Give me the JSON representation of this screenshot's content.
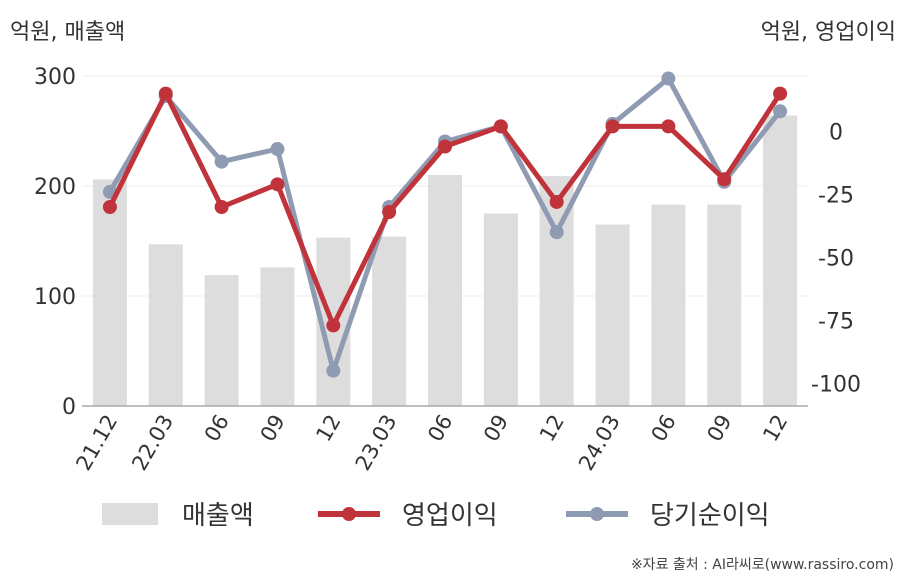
{
  "unit_left": "억원, 매출액",
  "unit_right": "억원, 영업이익",
  "source": "※자료 출처 : AI라씨로(www.rassiro.com)",
  "colors": {
    "bar": "#dddddd",
    "op": "#c0333a",
    "net": "#8f9bb3",
    "axis": "#aaaaaa",
    "grid": "#eeeeee"
  },
  "chart_data": {
    "type": "bar",
    "categories": [
      "21.12",
      "22.03",
      "06",
      "09",
      "12",
      "23.03",
      "06",
      "09",
      "12",
      "24.03",
      "06",
      "09",
      "12"
    ],
    "y_left": {
      "ticks": [
        0,
        100,
        200,
        300
      ],
      "range": [
        0,
        300
      ]
    },
    "y_right": {
      "ticks": [
        0,
        -25,
        -50,
        -75,
        -100
      ],
      "range": [
        -109,
        22
      ]
    },
    "series": [
      {
        "name": "매출액",
        "kind": "bar",
        "axis": "left",
        "values": [
          206,
          147,
          119,
          126,
          153,
          154,
          210,
          175,
          209,
          165,
          183,
          183,
          264
        ]
      },
      {
        "name": "영업이익",
        "kind": "line",
        "axis": "right",
        "values": [
          -30,
          15,
          -30,
          -21,
          -77,
          -32,
          -6,
          2,
          -28,
          2,
          2,
          -19,
          15
        ]
      },
      {
        "name": "당기순이익",
        "kind": "line",
        "axis": "right",
        "values": [
          -24,
          14,
          -12,
          -7,
          -95,
          -30,
          -4,
          2,
          -40,
          3,
          21,
          -20,
          8
        ]
      }
    ]
  }
}
